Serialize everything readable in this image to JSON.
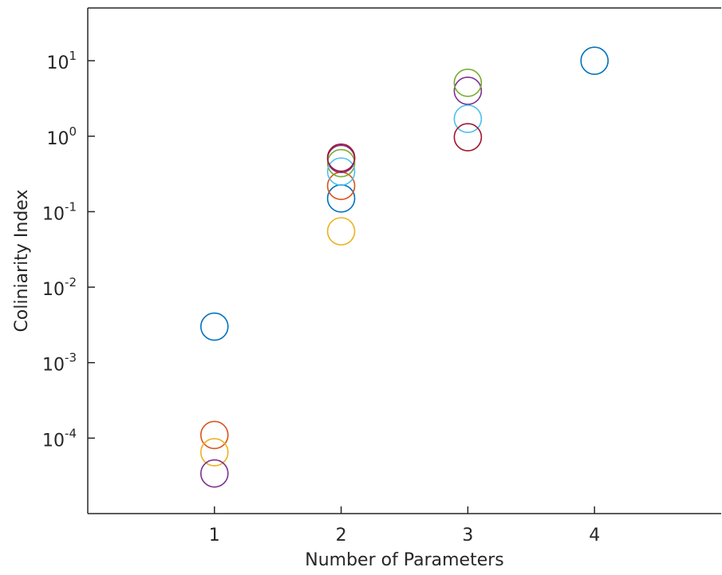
{
  "chart_data": {
    "type": "scatter",
    "xlabel": "Number of Parameters",
    "ylabel": "Coliniarity Index",
    "xlim": [
      0,
      5
    ],
    "xticks": [
      1,
      2,
      3,
      4
    ],
    "ylim": [
      1e-05,
      50
    ],
    "yscale": "log",
    "yticks": [
      {
        "value": 0.0001,
        "label": "10^-4"
      },
      {
        "value": 0.001,
        "label": "10^-3"
      },
      {
        "value": 0.01,
        "label": "10^-2"
      },
      {
        "value": 0.1,
        "label": "10^-1"
      },
      {
        "value": 1,
        "label": "10^0"
      },
      {
        "value": 10,
        "label": "10^1"
      }
    ],
    "series": [
      {
        "color": "#0072BD",
        "x": [
          1,
          2,
          4
        ],
        "values": [
          0.003,
          0.15,
          10
        ]
      },
      {
        "color": "#D95319",
        "x": [
          1,
          2
        ],
        "values": [
          0.00011,
          0.22
        ]
      },
      {
        "color": "#EDB120",
        "x": [
          1,
          2
        ],
        "values": [
          6.5e-05,
          0.055
        ]
      },
      {
        "color": "#7E2F8E",
        "x": [
          1,
          2,
          3
        ],
        "values": [
          3.4e-05,
          0.5,
          4.0
        ]
      },
      {
        "color": "#77AC30",
        "x": [
          2,
          3
        ],
        "values": [
          0.44,
          5.1
        ]
      },
      {
        "color": "#4DBEEE",
        "x": [
          2,
          3
        ],
        "values": [
          0.34,
          1.7
        ]
      },
      {
        "color": "#A2142F",
        "x": [
          2,
          3
        ],
        "values": [
          0.52,
          0.97
        ]
      }
    ]
  }
}
